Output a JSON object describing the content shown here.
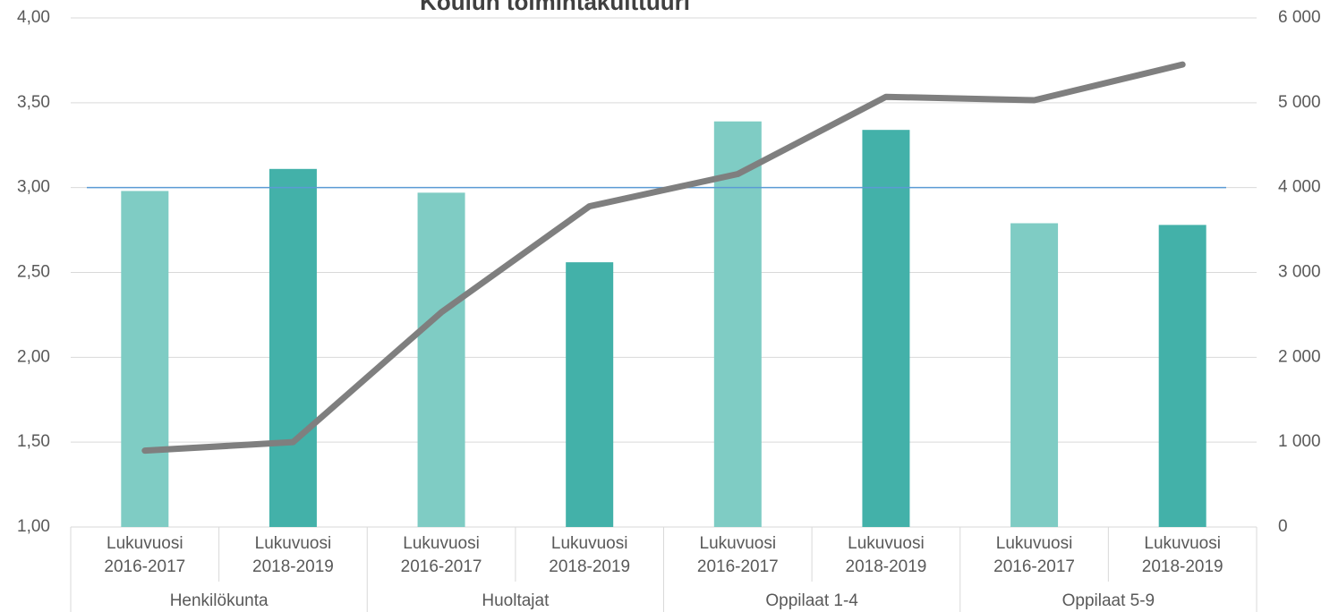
{
  "chart_data": {
    "type": "bar",
    "title": "Koulun toimintakulttuuri",
    "categories": [
      [
        "Lukuvuosi",
        "2016-2017"
      ],
      [
        "Lukuvuosi",
        "2018-2019"
      ],
      [
        "Lukuvuosi",
        "2016-2017"
      ],
      [
        "Lukuvuosi",
        "2018-2019"
      ],
      [
        "Lukuvuosi",
        "2016-2017"
      ],
      [
        "Lukuvuosi",
        "2018-2019"
      ],
      [
        "Lukuvuosi",
        "2016-2017"
      ],
      [
        "Lukuvuosi",
        "2018-2019"
      ]
    ],
    "groups": [
      "Henkilökunta",
      "Huoltajat",
      "Oppilaat 1-4",
      "Oppilaat 5-9"
    ],
    "series": [
      {
        "type": "bar",
        "colors": [
          "#7fccc4",
          "#43b1a9",
          "#7fccc4",
          "#43b1a9",
          "#7fccc4",
          "#43b1a9",
          "#7fccc4",
          "#43b1a9"
        ],
        "values": [
          2.98,
          3.11,
          2.97,
          2.56,
          3.39,
          3.34,
          2.79,
          2.78
        ]
      },
      {
        "type": "line",
        "axis": "y2",
        "color": "#7f7f7f",
        "values": [
          900,
          1000,
          2530,
          3780,
          4160,
          5070,
          5030,
          5450
        ]
      }
    ],
    "hline": {
      "value": 3,
      "color": "#5b9bd5"
    },
    "ylim": [
      1,
      4
    ],
    "yticks": [
      {
        "value": 1,
        "label": "1,00"
      },
      {
        "value": 1.5,
        "label": "1,50"
      },
      {
        "value": 2,
        "label": "2,00"
      },
      {
        "value": 2.5,
        "label": "2,50"
      },
      {
        "value": 3,
        "label": "3,00"
      },
      {
        "value": 3.5,
        "label": "3,50"
      },
      {
        "value": 4,
        "label": "4,00"
      }
    ],
    "y2lim": [
      0,
      6000
    ],
    "y2ticks": [
      0,
      {
        "value": 1000,
        "label": "1 000"
      },
      {
        "value": 2000,
        "label": "2 000"
      },
      {
        "value": 3000,
        "label": "3 000"
      },
      {
        "value": 4000,
        "label": "4 000"
      },
      {
        "value": 5000,
        "label": "5 000"
      },
      {
        "value": 6000,
        "label": "6 000"
      }
    ],
    "grid": true
  }
}
